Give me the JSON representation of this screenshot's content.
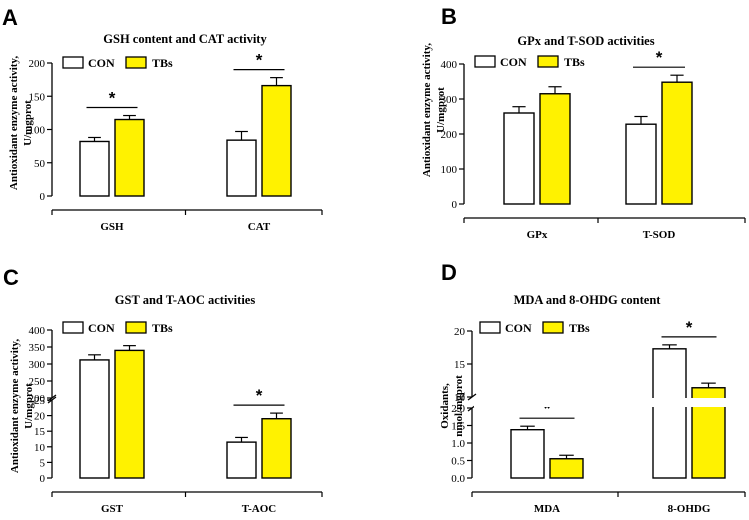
{
  "legend": {
    "con": "CON",
    "tbs": "TBs"
  },
  "colors": {
    "con": "#ffffff",
    "tbs": "#fff200",
    "stroke": "#000000"
  },
  "chart_data": [
    {
      "letter": "A",
      "type": "bar",
      "title": "GSH content and CAT activity",
      "ylabel": [
        "Antioxidant enzyme activity,",
        "U/mgprot"
      ],
      "categories": [
        "GSH",
        "CAT"
      ],
      "series": [
        {
          "name": "CON",
          "values": [
            82,
            84
          ],
          "errors": [
            6,
            13
          ]
        },
        {
          "name": "TBs",
          "values": [
            115,
            166
          ],
          "errors": [
            6,
            12
          ]
        }
      ],
      "ylim": [
        0,
        200
      ],
      "yticks": [
        0,
        50,
        100,
        150,
        200
      ],
      "significance": [
        {
          "category": "GSH",
          "label": "*"
        },
        {
          "category": "CAT",
          "label": "*"
        }
      ]
    },
    {
      "letter": "B",
      "type": "bar",
      "title": "GPx and T-SOD activities",
      "ylabel": [
        "Antioxidant enzyme activity,",
        "U/mgprot"
      ],
      "categories": [
        "GPx",
        "T-SOD"
      ],
      "series": [
        {
          "name": "CON",
          "values": [
            260,
            228
          ],
          "errors": [
            18,
            22
          ]
        },
        {
          "name": "TBs",
          "values": [
            315,
            348
          ],
          "errors": [
            20,
            20
          ]
        }
      ],
      "ylim": [
        0,
        400
      ],
      "yticks": [
        0,
        100,
        200,
        300,
        400
      ],
      "significance": [
        {
          "category": "T-SOD",
          "label": "*"
        }
      ]
    },
    {
      "letter": "C",
      "type": "bar",
      "title": "GST and T-AOC activities",
      "ylabel": [
        "Antioxidant enzyme activity,",
        "U/mgprot"
      ],
      "categories": [
        "GST",
        "T-AOC"
      ],
      "series": [
        {
          "name": "CON",
          "values": [
            312,
            11.5
          ],
          "errors": [
            15,
            1.5
          ]
        },
        {
          "name": "TBs",
          "values": [
            340,
            19
          ],
          "errors": [
            14,
            1.8
          ]
        }
      ],
      "axis_break": {
        "lower": [
          0,
          25
        ],
        "upper": [
          200,
          400
        ]
      },
      "yticks_lower": [
        0,
        5,
        10,
        15,
        20,
        25
      ],
      "yticks_upper": [
        200,
        250,
        300,
        350,
        400
      ],
      "significance": [
        {
          "category": "T-AOC",
          "label": "*"
        }
      ]
    },
    {
      "letter": "D",
      "type": "bar",
      "title": "MDA and 8-OHDG content",
      "ylabel": [
        "Oxidants,",
        "nmol/mgprot"
      ],
      "categories": [
        "MDA",
        "8-OHDG"
      ],
      "series": [
        {
          "name": "CON",
          "values": [
            1.38,
            17.3
          ],
          "errors": [
            0.1,
            0.6
          ]
        },
        {
          "name": "TBs",
          "values": [
            0.55,
            11.4
          ],
          "errors": [
            0.1,
            0.7
          ]
        }
      ],
      "axis_break": {
        "lower": [
          0,
          2.0
        ],
        "upper": [
          10,
          20
        ]
      },
      "yticks_lower": [
        "0.0",
        "0.5",
        "1.0",
        "1.5",
        "2.0"
      ],
      "yticks_upper": [
        10,
        15,
        20
      ],
      "significance": [
        {
          "category": "MDA",
          "label": "*"
        },
        {
          "category": "8-OHDG",
          "label": "*"
        }
      ]
    }
  ]
}
